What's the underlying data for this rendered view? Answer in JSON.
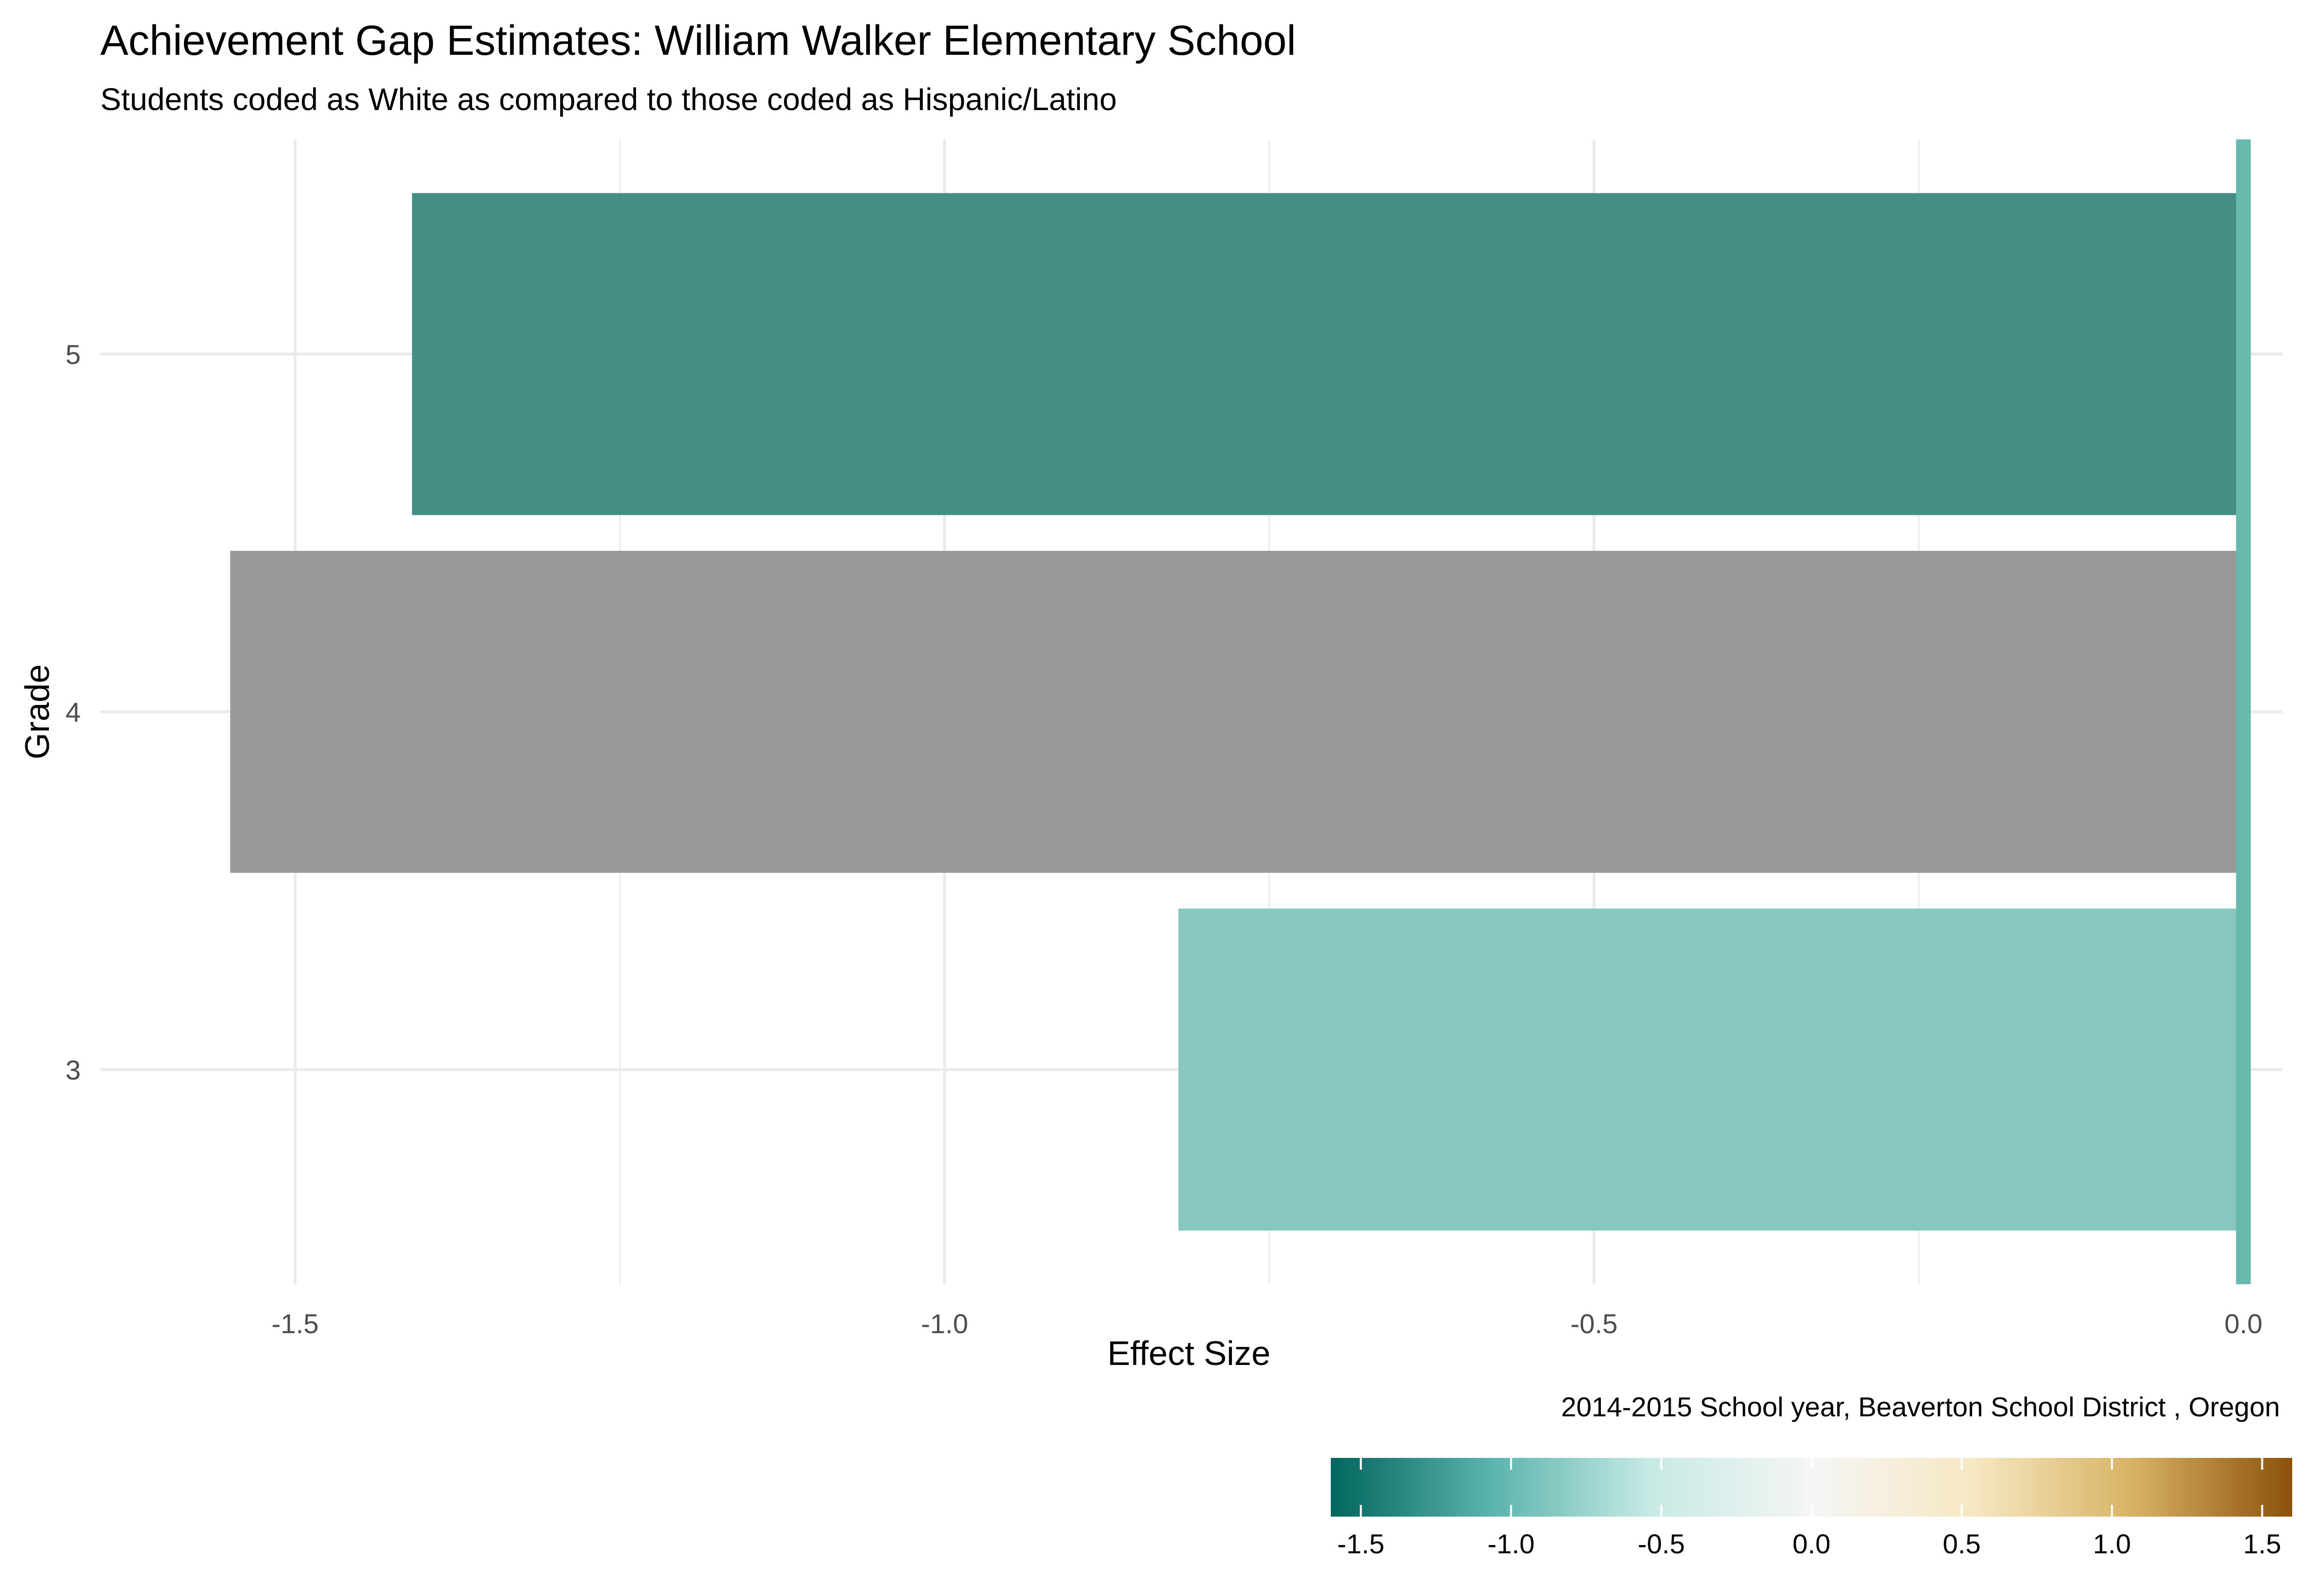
{
  "chart_data": {
    "type": "bar",
    "orientation": "horizontal",
    "title": "Achievement Gap Estimates: William Walker Elementary School",
    "subtitle": "Students coded as White as compared to those coded as Hispanic/Latino",
    "xlabel": "Effect Size",
    "ylabel": "Grade",
    "caption": "2014-2015 School year,  Beaverton School District , Oregon",
    "categories": [
      "3",
      "4",
      "5"
    ],
    "values": [
      -0.82,
      -1.55,
      -1.41
    ],
    "bar_colors": [
      "#88c6c0",
      "#999999",
      "#448e86"
    ],
    "reference_line": {
      "x": 0.0,
      "color": "#67b9ae"
    },
    "xlim": [
      -1.65,
      0.03
    ],
    "x_ticks": [
      -1.5,
      -1.0,
      -0.5,
      0.0
    ],
    "x_tick_labels": [
      "-1.5",
      "-1.0",
      "-0.5",
      "0.0"
    ],
    "grid": true,
    "legend": {
      "position": "bottom-right",
      "type": "colorbar",
      "range": [
        -1.6,
        1.6
      ],
      "ticks": [
        -1.5,
        -1.0,
        -0.5,
        0.0,
        0.5,
        1.0,
        1.5
      ],
      "tick_labels": [
        "-1.5",
        "-1.0",
        "-0.5",
        "0.0",
        "0.5",
        "1.0",
        "1.5"
      ],
      "colors": [
        "#01665e",
        "#5ab4ac",
        "#c7eae5",
        "#f5f5f5",
        "#f6e8c3",
        "#d8b365",
        "#8c510a"
      ]
    }
  }
}
